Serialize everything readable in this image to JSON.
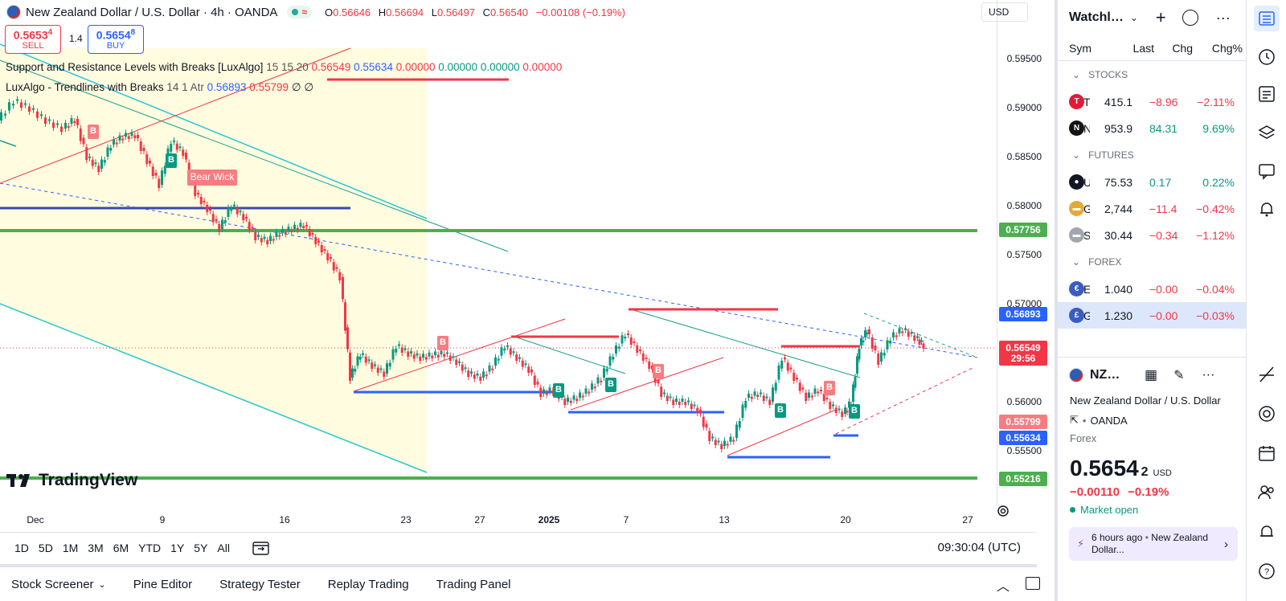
{
  "legend": {
    "title": "New Zealand Dollar / U.S. Dollar · 4h · OANDA",
    "ohlc": [
      {
        "k": "O",
        "v": "0.56646"
      },
      {
        "k": "H",
        "v": "0.56694"
      },
      {
        "k": "L",
        "v": "0.56497"
      },
      {
        "k": "C",
        "v": "0.56540"
      },
      {
        "k": "",
        "v": "−0.00108 (−0.19%)"
      }
    ],
    "pill_wave": "≈"
  },
  "trade": {
    "sell_price": "0.5653",
    "sell_sup": "4",
    "sell_label": "SELL",
    "spread": "1.4",
    "buy_price": "0.5654",
    "buy_sup": "8",
    "buy_label": "BUY"
  },
  "indicators": {
    "ind1_name": "Support and Resistance Levels with Breaks [LuxAlgo]",
    "ind1_params": "15 15 20",
    "ind1_v1": "0.56549",
    "ind1_v2": "0.55634",
    "ind1_v3": "0.00000",
    "ind1_v4": "0.00000",
    "ind1_v5": "0.00000",
    "ind1_v6": "0.00000",
    "ind2_name": "LuxAlgo - Trendlines with Breaks",
    "ind2_params": "14 1 Atr",
    "ind2_v1": "0.56893",
    "ind2_v2": "0.55799",
    "ind2_v3": "∅",
    "ind2_v4": "∅"
  },
  "currency": "USD",
  "price_axis": {
    "ticks": [
      "0.59500",
      "0.59000",
      "0.58500",
      "0.58000",
      "0.57500",
      "0.57000",
      "0.56000",
      "0.55500"
    ],
    "tick_values": [
      0.595,
      0.59,
      0.585,
      0.58,
      0.575,
      0.57,
      0.56,
      0.555
    ],
    "tags": [
      {
        "label": "0.57756",
        "value": 0.57756,
        "color": "#4caf50"
      },
      {
        "label": "0.56893",
        "value": 0.56893,
        "color": "#2962ff"
      },
      {
        "label": "0.56549",
        "value": 0.56549,
        "color": "#f23645"
      },
      {
        "label": "29:56",
        "value": 0.5644,
        "color": "#f23645"
      },
      {
        "label": "0.55799",
        "value": 0.55799,
        "color": "#f77c80"
      },
      {
        "label": "0.55634",
        "value": 0.55634,
        "color": "#2962ff"
      },
      {
        "label": "0.55216",
        "value": 0.55216,
        "color": "#4caf50"
      }
    ]
  },
  "time_axis": [
    "Dec",
    "9",
    "16",
    "23",
    "27",
    "2025",
    "7",
    "13",
    "20",
    "27"
  ],
  "signals": {
    "bear_wick": "Bear Wick",
    "b": "B"
  },
  "logo_text": "TradingView",
  "timeframes": [
    "1D",
    "5D",
    "1M",
    "3M",
    "6M",
    "YTD",
    "1Y",
    "5Y",
    "All"
  ],
  "clock": "09:30:04 (UTC)",
  "bottom_tabs": [
    "Stock Screener",
    "Pine Editor",
    "Strategy Tester",
    "Replay Trading",
    "Trading Panel"
  ],
  "watchlist": {
    "title": "Watchl…",
    "cols": [
      "Sym",
      "Last",
      "Chg",
      "Chg%"
    ],
    "sections": [
      {
        "name": "STOCKS",
        "rows": [
          {
            "sym": "TSLA",
            "icon": "T",
            "icon_color": "#e31937",
            "last": "415.1",
            "chg": "−8.96",
            "chgp": "−2.11%",
            "dir": "neg"
          },
          {
            "sym": "NFLX",
            "icon": "N",
            "icon_color": "#141414",
            "last": "953.9",
            "chg": "84.31",
            "chgp": "9.69%",
            "dir": "pos"
          }
        ]
      },
      {
        "name": "FUTURES",
        "rows": [
          {
            "sym": "USOIL",
            "icon": "●",
            "icon_color": "#131722",
            "last": "75.53",
            "chg": "0.17",
            "chgp": "0.22%",
            "dir": "pos"
          },
          {
            "sym": "GOLD",
            "icon": "▬",
            "icon_color": "#e5a93a",
            "last": "2,744",
            "chg": "−11.4",
            "chgp": "−0.42%",
            "dir": "neg"
          },
          {
            "sym": "SILVER",
            "icon": "▬",
            "icon_color": "#a3a6af",
            "last": "30.44",
            "chg": "−0.34",
            "chgp": "−1.12%",
            "dir": "neg"
          }
        ]
      },
      {
        "name": "FOREX",
        "rows": [
          {
            "sym": "EURUSD",
            "icon": "€",
            "icon_color": "#3a5dbf",
            "last": "1.040",
            "chg": "−0.00",
            "chgp": "−0.04%",
            "dir": "neg"
          },
          {
            "sym": "GBPUSD",
            "icon": "£",
            "icon_color": "#3a5dbf",
            "last": "1.230",
            "chg": "−0.00",
            "chgp": "−0.03%",
            "dir": "neg"
          }
        ]
      }
    ]
  },
  "details": {
    "sym": "NZ…",
    "name": "New Zealand Dollar / U.S. Dollar",
    "exchange": "OANDA",
    "type": "Forex",
    "price_main": "0.5654",
    "price_sup": "2",
    "price_cur": "USD",
    "change": "−0.00110",
    "change_pct": "−0.19%",
    "status": "Market open",
    "news_time": "6 hours ago",
    "news_title": "New Zealand Dollar..."
  }
}
